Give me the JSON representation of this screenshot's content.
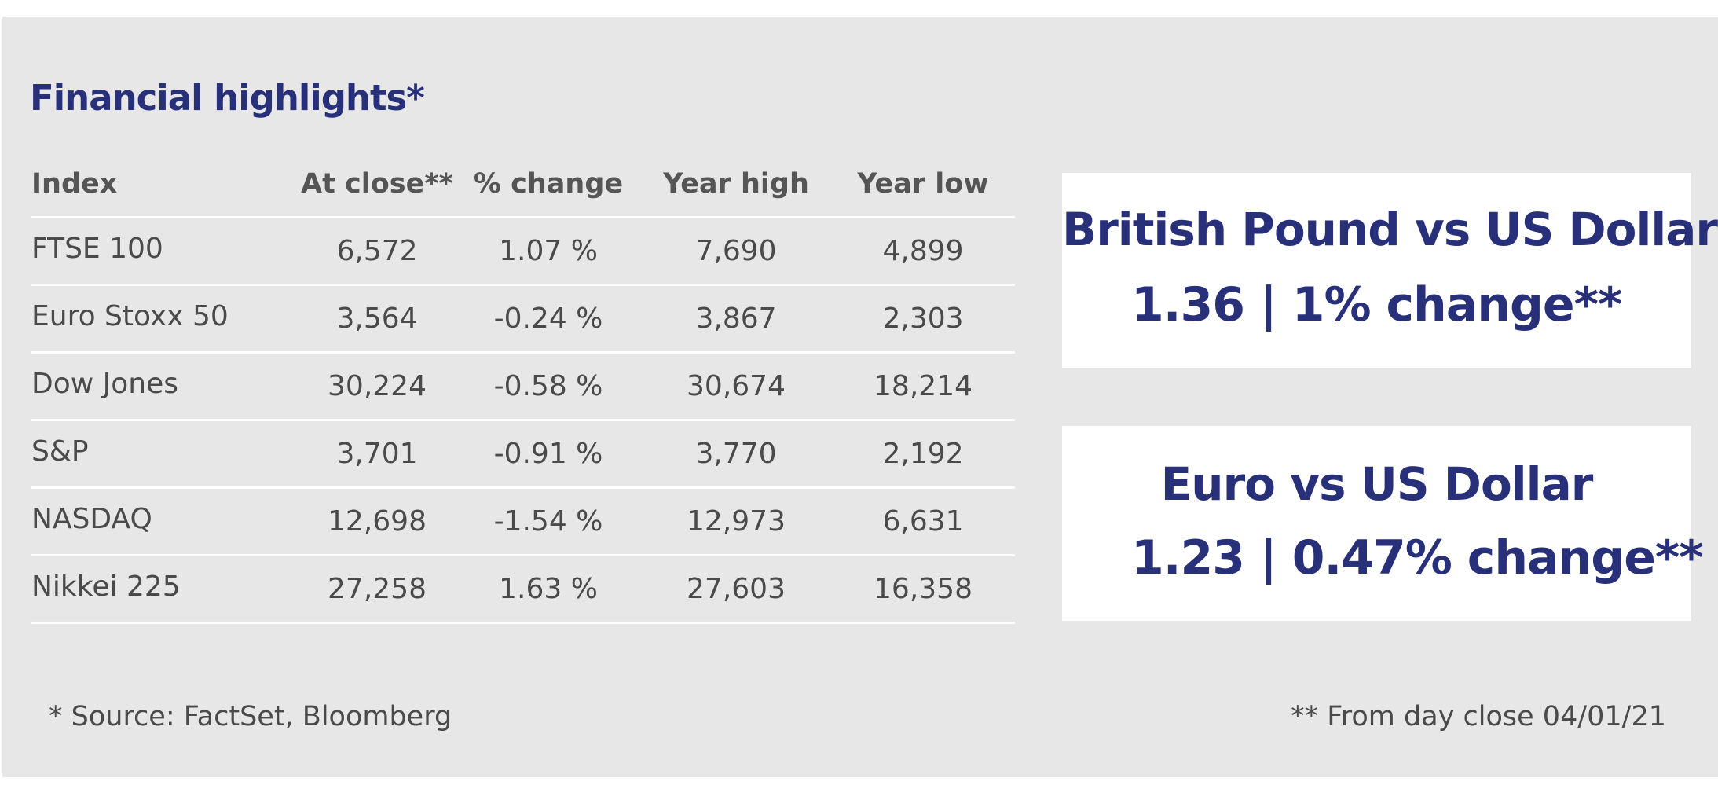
{
  "title": "Financial highlights*",
  "table": {
    "headers": [
      "Index",
      "At close**",
      "% change",
      "Year high",
      "Year low"
    ],
    "rows": [
      [
        "FTSE 100",
        "6,572",
        "1.07 %",
        "7,690",
        "4,899"
      ],
      [
        "Euro Stoxx 50",
        "3,564",
        "-0.24 %",
        "3,867",
        "2,303"
      ],
      [
        "Dow Jones",
        "30,224",
        "-0.58 %",
        "30,674",
        "18,214"
      ],
      [
        "S&P",
        "3,701",
        "-0.91 %",
        "3,770",
        "2,192"
      ],
      [
        "NASDAQ",
        "12,698",
        "-1.54 %",
        "12,973",
        "6,631"
      ],
      [
        "Nikkei 225",
        "27,258",
        "1.63 %",
        "27,603",
        "16,358"
      ]
    ]
  },
  "fx": [
    {
      "pair": "British Pound vs US Dollar",
      "value": "1.36 | 1% change**"
    },
    {
      "pair": "Euro vs US Dollar",
      "value": "1.23 | 0.47% change**"
    }
  ],
  "footnotes": {
    "source": "* Source: FactSet, Bloomberg",
    "close": "** From day close 04/01/21"
  },
  "colors": {
    "background": "#e7e7e7",
    "accent": "#28307a",
    "text": "#4a4a4a"
  }
}
